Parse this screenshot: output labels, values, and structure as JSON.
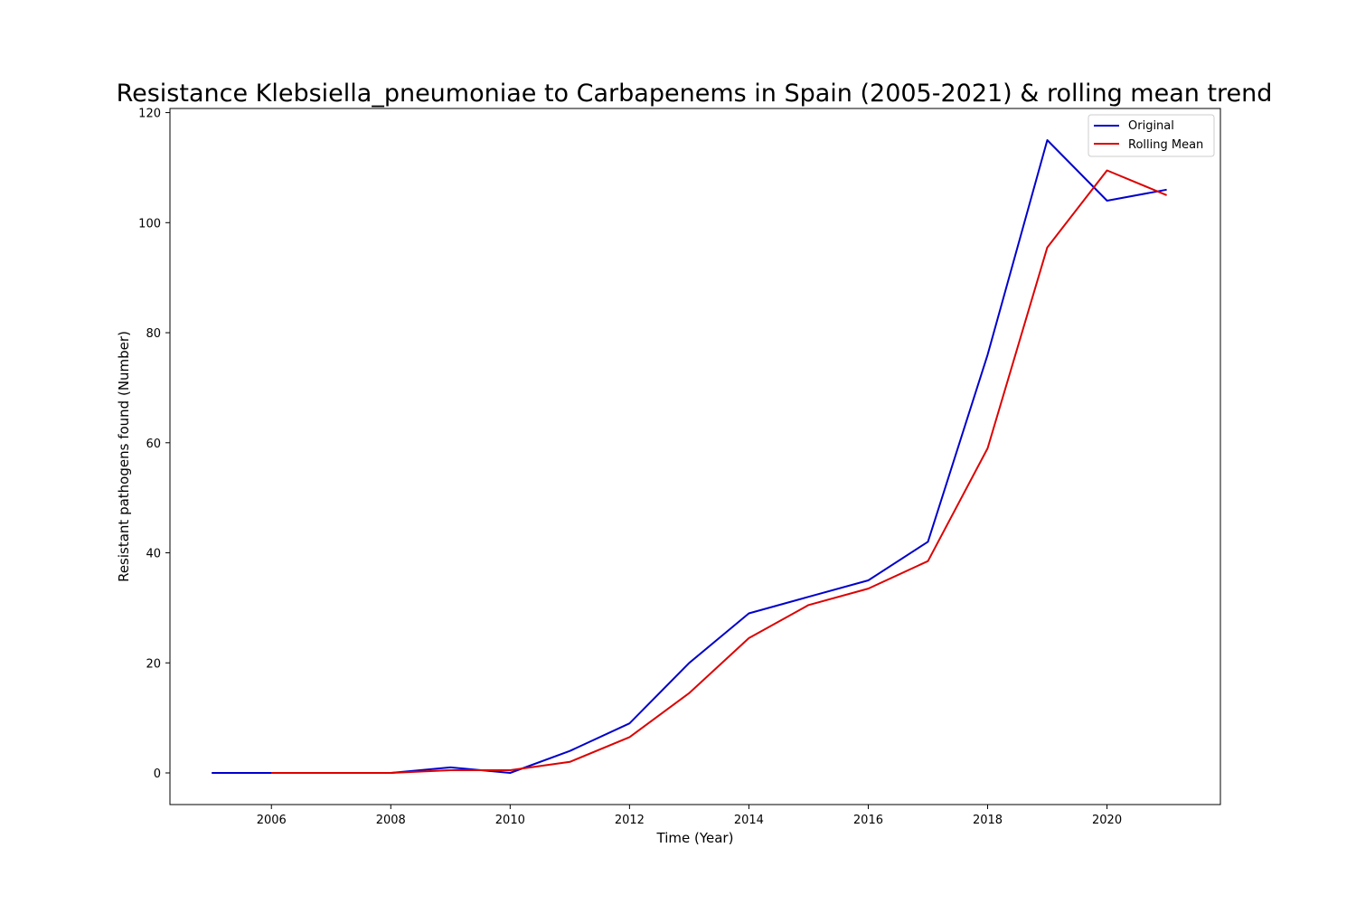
{
  "chart_data": {
    "type": "line",
    "title": "Resistance Klebsiella_pneumoniae to Carbapenems in Spain (2005-2021) & rolling mean trend",
    "xlabel": "Time (Year)",
    "ylabel": "Resistant pathogens found (Number)",
    "xlim": [
      2004.3,
      2021.9
    ],
    "ylim": [
      -5.75,
      120.75
    ],
    "xticks": [
      2006,
      2008,
      2010,
      2012,
      2014,
      2016,
      2018,
      2020
    ],
    "yticks": [
      0,
      20,
      40,
      60,
      80,
      100,
      120
    ],
    "grid": false,
    "legend_position": "upper right",
    "series": [
      {
        "name": "Original",
        "color": "#0000cc",
        "x": [
          2005,
          2006,
          2007,
          2008,
          2009,
          2010,
          2011,
          2012,
          2013,
          2014,
          2015,
          2016,
          2017,
          2018,
          2019,
          2020,
          2021
        ],
        "y": [
          0,
          0,
          0,
          0,
          1,
          0,
          4,
          9,
          20,
          29,
          32,
          35,
          42,
          76,
          115,
          104,
          106
        ]
      },
      {
        "name": "Rolling Mean",
        "color": "#dd0000",
        "x": [
          2006,
          2007,
          2008,
          2009,
          2010,
          2011,
          2012,
          2013,
          2014,
          2015,
          2016,
          2017,
          2018,
          2019,
          2020,
          2021
        ],
        "y": [
          0,
          0,
          0,
          0.5,
          0.5,
          2,
          6.5,
          14.5,
          24.5,
          30.5,
          33.5,
          38.5,
          59,
          95.5,
          109.5,
          105
        ]
      }
    ]
  }
}
